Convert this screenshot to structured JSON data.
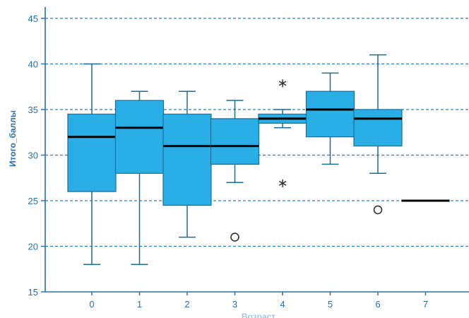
{
  "chart_data": {
    "type": "boxplot",
    "xlabel": "Возраст",
    "ylabel": "Итого_баллы",
    "ylim": [
      15,
      45
    ],
    "yticks": [
      15,
      20,
      25,
      30,
      35,
      40,
      45
    ],
    "grid": "horizontal dashed",
    "colors": {
      "box": "#29aee6",
      "box_stroke": "#1a6e98",
      "grid": "#2f7db8",
      "axis": "#2a6fa8",
      "median": "#000000"
    },
    "categories": [
      "0",
      "1",
      "2",
      "3",
      "4",
      "5",
      "6",
      "7"
    ],
    "boxes": [
      {
        "category": "0",
        "min": 18,
        "q1": 26,
        "median": 32,
        "q3": 34.5,
        "max": 40,
        "outliers": []
      },
      {
        "category": "1",
        "min": 18,
        "q1": 28,
        "median": 33,
        "q3": 36,
        "max": 37,
        "outliers": []
      },
      {
        "category": "2",
        "min": 21,
        "q1": 24.5,
        "median": 31,
        "q3": 34.5,
        "max": 37,
        "outliers": []
      },
      {
        "category": "3",
        "min": 27,
        "q1": 29,
        "median": 31,
        "q3": 34,
        "max": 36,
        "outliers": [
          {
            "value": 21,
            "marker": "circle"
          }
        ]
      },
      {
        "category": "4",
        "min": 33,
        "q1": 33.5,
        "median": 34,
        "q3": 34.5,
        "max": 35,
        "outliers": [
          {
            "value": 38,
            "marker": "star"
          },
          {
            "value": 27,
            "marker": "star"
          }
        ]
      },
      {
        "category": "5",
        "min": 29,
        "q1": 32,
        "median": 35,
        "q3": 37,
        "max": 39,
        "outliers": []
      },
      {
        "category": "6",
        "min": 28,
        "q1": 31,
        "median": 34,
        "q3": 35,
        "max": 41,
        "outliers": [
          {
            "value": 24,
            "marker": "circle"
          }
        ]
      },
      {
        "category": "7",
        "min": 25,
        "q1": 25,
        "median": 25,
        "q3": 25,
        "max": 25,
        "outliers": []
      }
    ]
  }
}
